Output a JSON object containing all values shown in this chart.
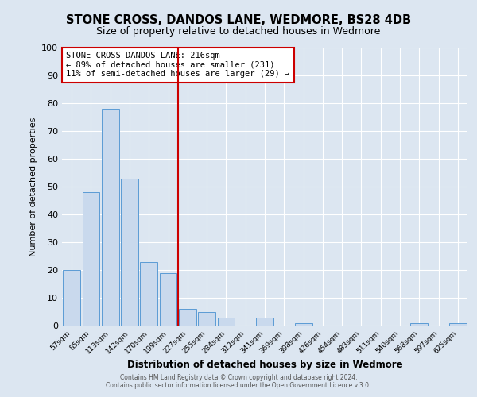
{
  "title": "STONE CROSS, DANDOS LANE, WEDMORE, BS28 4DB",
  "subtitle": "Size of property relative to detached houses in Wedmore",
  "xlabel": "Distribution of detached houses by size in Wedmore",
  "ylabel": "Number of detached properties",
  "bar_labels": [
    "57sqm",
    "85sqm",
    "113sqm",
    "142sqm",
    "170sqm",
    "199sqm",
    "227sqm",
    "255sqm",
    "284sqm",
    "312sqm",
    "341sqm",
    "369sqm",
    "398sqm",
    "426sqm",
    "454sqm",
    "483sqm",
    "511sqm",
    "540sqm",
    "568sqm",
    "597sqm",
    "625sqm"
  ],
  "bar_values": [
    20,
    48,
    78,
    53,
    23,
    19,
    6,
    5,
    3,
    0,
    3,
    0,
    1,
    0,
    0,
    0,
    0,
    0,
    1,
    0,
    1
  ],
  "bar_color": "#c9d9ed",
  "bar_edge_color": "#5b9bd5",
  "vline_x_index": 6,
  "annotation_title": "STONE CROSS DANDOS LANE: 216sqm",
  "annotation_line1": "← 89% of detached houses are smaller (231)",
  "annotation_line2": "11% of semi-detached houses are larger (29) →",
  "annotation_box_color": "#ffffff",
  "annotation_box_edge_color": "#cc0000",
  "vline_color": "#cc0000",
  "ylim": [
    0,
    100
  ],
  "yticks": [
    0,
    10,
    20,
    30,
    40,
    50,
    60,
    70,
    80,
    90,
    100
  ],
  "footer1": "Contains HM Land Registry data © Crown copyright and database right 2024.",
  "footer2": "Contains public sector information licensed under the Open Government Licence v.3.0.",
  "bg_color": "#dce6f1",
  "plot_bg_color": "#dce6f1"
}
